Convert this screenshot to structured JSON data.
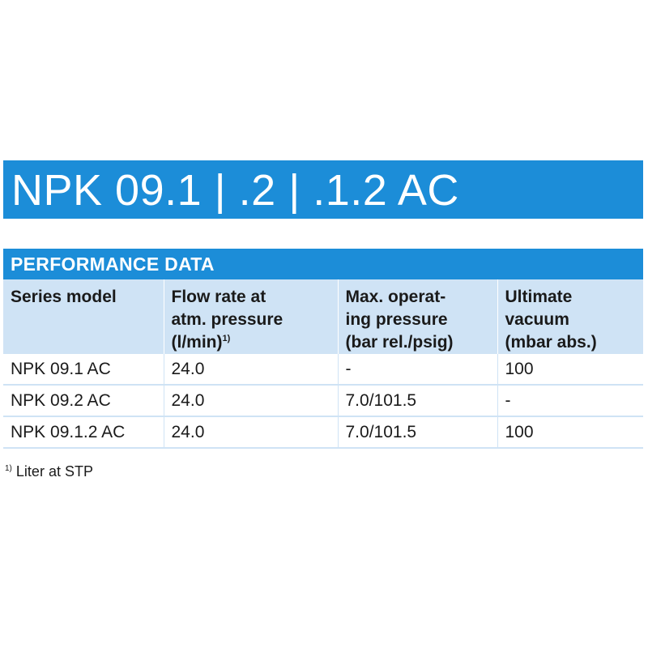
{
  "title": "NPK 09.1 | .2 | .1.2 AC",
  "section_title": "PERFORMANCE DATA",
  "table": {
    "columns": [
      {
        "label": "Series model",
        "sup": ""
      },
      {
        "label": "Flow rate at\natm. pressure\n(l/min)",
        "sup": "1)"
      },
      {
        "label": "Max. operat-\ning pressure\n(bar rel./psig)",
        "sup": ""
      },
      {
        "label": "Ultimate\nvacuum\n(mbar abs.)",
        "sup": ""
      }
    ],
    "rows": [
      [
        "NPK 09.1 AC",
        "24.0",
        "-",
        "100"
      ],
      [
        "NPK 09.2 AC",
        "24.0",
        "7.0/101.5",
        "-"
      ],
      [
        "NPK 09.1.2 AC",
        "24.0",
        "7.0/101.5",
        "100"
      ]
    ]
  },
  "footnote": {
    "marker": "1)",
    "text": "Liter at STP"
  },
  "colors": {
    "header_blue": "#1c8dd8",
    "light_blue": "#cfe3f5"
  }
}
